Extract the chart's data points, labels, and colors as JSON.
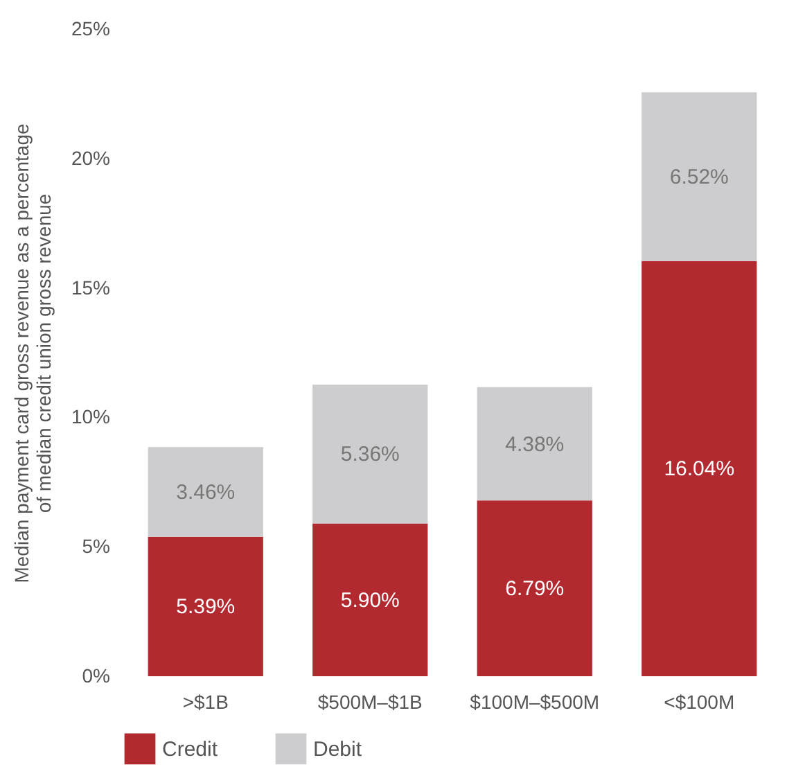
{
  "chart_data": {
    "type": "bar",
    "stacked": true,
    "ylabel": "Median payment card gross revenue as a percentage of median credit union gross revenue",
    "categories": [
      ">$1B",
      "$500M–$1B",
      "$100M–$500M",
      "<$100M"
    ],
    "series": [
      {
        "name": "Credit",
        "color": "#b22a30",
        "values": [
          5.39,
          5.9,
          6.79,
          16.04
        ],
        "value_labels": [
          "5.39%",
          "5.90%",
          "6.79%",
          "16.04%"
        ]
      },
      {
        "name": "Debit",
        "color": "#cdcdcf",
        "values": [
          3.46,
          5.36,
          4.38,
          6.52
        ],
        "value_labels": [
          "3.46%",
          "5.36%",
          "4.38%",
          "6.52%"
        ]
      }
    ],
    "ylim": [
      0,
      25
    ],
    "yticks": [
      {
        "value": 0,
        "label": "0%"
      },
      {
        "value": 5,
        "label": "5%"
      },
      {
        "value": 10,
        "label": "10%"
      },
      {
        "value": 15,
        "label": "15%"
      },
      {
        "value": 20,
        "label": "20%"
      },
      {
        "value": 25,
        "label": "25%"
      }
    ],
    "grid": false,
    "legend": "bottom"
  }
}
